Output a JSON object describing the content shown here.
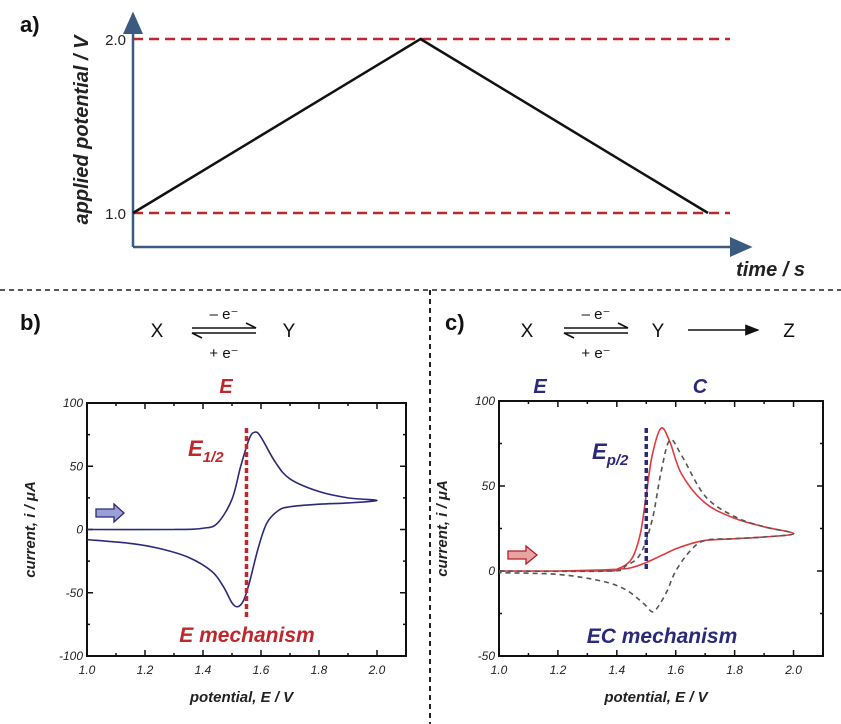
{
  "panels": {
    "a": {
      "label": "a)",
      "ylabel": "applied potential / V",
      "xlabel": "time / s",
      "yticks": [
        "2.0",
        "1.0"
      ]
    },
    "b": {
      "label": "b)",
      "scheme": {
        "reactant": "X",
        "product": "Y",
        "above": "– e⁻",
        "below": "+ e⁻",
        "step_label": "E"
      },
      "annotation": "E",
      "annotation_sub": "1/2",
      "mechanism": "E mechanism"
    },
    "c": {
      "label": "c)",
      "scheme": {
        "reactant": "X",
        "intermediate": "Y",
        "product": "Z",
        "above": "– e⁻",
        "below": "+ e⁻",
        "step1_label": "E",
        "step2_label": "C"
      },
      "annotation": "E",
      "annotation_sub": "p/2",
      "mechanism": "EC mechanism"
    }
  },
  "colors": {
    "red": "#c0272d",
    "navy": "#2b2a7a",
    "axis_blue": "#3a5a80",
    "gray": "#555555"
  },
  "chart_data": [
    {
      "type": "line",
      "panel": "a",
      "xlabel": "time / s",
      "ylabel": "applied potential / V",
      "ylim": [
        0.8,
        2.1
      ],
      "yticks": [
        1.0,
        2.0
      ],
      "series": [
        {
          "x": [
            0,
            1,
            2
          ],
          "y": [
            1.0,
            2.0,
            1.0
          ],
          "color": "#111111",
          "style": "solid"
        }
      ],
      "reference_lines": [
        {
          "y": 2.0,
          "color": "#c0272d",
          "style": "dashed"
        },
        {
          "y": 1.0,
          "color": "#c0272d",
          "style": "dashed"
        }
      ]
    },
    {
      "type": "line",
      "panel": "b",
      "xlabel": "potential, E / V",
      "ylabel": "current, i / μA",
      "xlim": [
        1.0,
        2.1
      ],
      "ylim": [
        -100,
        100
      ],
      "xticks": [
        "1.0",
        "1.2",
        "1.4",
        "1.6",
        "1.8",
        "2.0"
      ],
      "yticks": [
        "100",
        "50",
        "0",
        "-50",
        "-100"
      ],
      "series": [
        {
          "color": "#2b2a7a",
          "style": "solid",
          "points": [
            [
              1.0,
              0
            ],
            [
              1.3,
              0
            ],
            [
              1.4,
              1
            ],
            [
              1.45,
              5
            ],
            [
              1.5,
              24
            ],
            [
              1.53,
              50
            ],
            [
              1.56,
              72
            ],
            [
              1.58,
              77
            ],
            [
              1.6,
              73
            ],
            [
              1.65,
              53
            ],
            [
              1.7,
              40
            ],
            [
              1.8,
              30
            ],
            [
              1.9,
              25
            ],
            [
              2.0,
              23
            ],
            [
              1.9,
              21
            ],
            [
              1.8,
              20
            ],
            [
              1.7,
              18
            ],
            [
              1.66,
              15
            ],
            [
              1.62,
              5
            ],
            [
              1.59,
              -15
            ],
            [
              1.56,
              -42
            ],
            [
              1.54,
              -56
            ],
            [
              1.52,
              -61
            ],
            [
              1.5,
              -58
            ],
            [
              1.47,
              -45
            ],
            [
              1.43,
              -33
            ],
            [
              1.35,
              -22
            ],
            [
              1.25,
              -15
            ],
            [
              1.15,
              -11
            ],
            [
              1.0,
              -8
            ]
          ]
        }
      ],
      "reference_lines": [
        {
          "x": 1.55,
          "color": "#c0272d",
          "style": "dotted"
        }
      ]
    },
    {
      "type": "line",
      "panel": "c",
      "xlabel": "potential, E / V",
      "ylabel": "current, i / μA",
      "xlim": [
        1.0,
        2.1
      ],
      "ylim": [
        -50,
        100
      ],
      "xticks": [
        "1.0",
        "1.2",
        "1.4",
        "1.6",
        "1.8",
        "2.0"
      ],
      "yticks": [
        "100",
        "50",
        "0",
        "-50"
      ],
      "series": [
        {
          "color": "#e0393e",
          "style": "solid",
          "points": [
            [
              1.0,
              0
            ],
            [
              1.35,
              0
            ],
            [
              1.4,
              1
            ],
            [
              1.45,
              7
            ],
            [
              1.48,
              22
            ],
            [
              1.5,
              45
            ],
            [
              1.52,
              68
            ],
            [
              1.55,
              84
            ],
            [
              1.58,
              76
            ],
            [
              1.62,
              57
            ],
            [
              1.7,
              40
            ],
            [
              1.8,
              31
            ],
            [
              1.9,
              26
            ],
            [
              2.0,
              22
            ],
            [
              1.9,
              20
            ],
            [
              1.8,
              19
            ],
            [
              1.7,
              18
            ],
            [
              1.65,
              16
            ],
            [
              1.6,
              13
            ],
            [
              1.55,
              9
            ],
            [
              1.5,
              5
            ],
            [
              1.45,
              2
            ],
            [
              1.4,
              1
            ],
            [
              1.2,
              0
            ],
            [
              1.0,
              0
            ]
          ]
        },
        {
          "color": "#555555",
          "style": "dashed",
          "points": [
            [
              1.0,
              0
            ],
            [
              1.38,
              0
            ],
            [
              1.43,
              3
            ],
            [
              1.48,
              10
            ],
            [
              1.52,
              30
            ],
            [
              1.55,
              58
            ],
            [
              1.58,
              77
            ],
            [
              1.62,
              68
            ],
            [
              1.7,
              44
            ],
            [
              1.8,
              32
            ],
            [
              1.9,
              26
            ],
            [
              2.0,
              22
            ],
            [
              1.9,
              20
            ],
            [
              1.8,
              19
            ],
            [
              1.7,
              18
            ],
            [
              1.65,
              12
            ],
            [
              1.6,
              0
            ],
            [
              1.57,
              -12
            ],
            [
              1.54,
              -21
            ],
            [
              1.52,
              -24
            ],
            [
              1.49,
              -19
            ],
            [
              1.43,
              -11
            ],
            [
              1.35,
              -6
            ],
            [
              1.2,
              -2
            ],
            [
              1.0,
              -1
            ]
          ]
        }
      ],
      "reference_lines": [
        {
          "x": 1.5,
          "color": "#2b2a7a",
          "style": "dotted"
        }
      ]
    }
  ]
}
